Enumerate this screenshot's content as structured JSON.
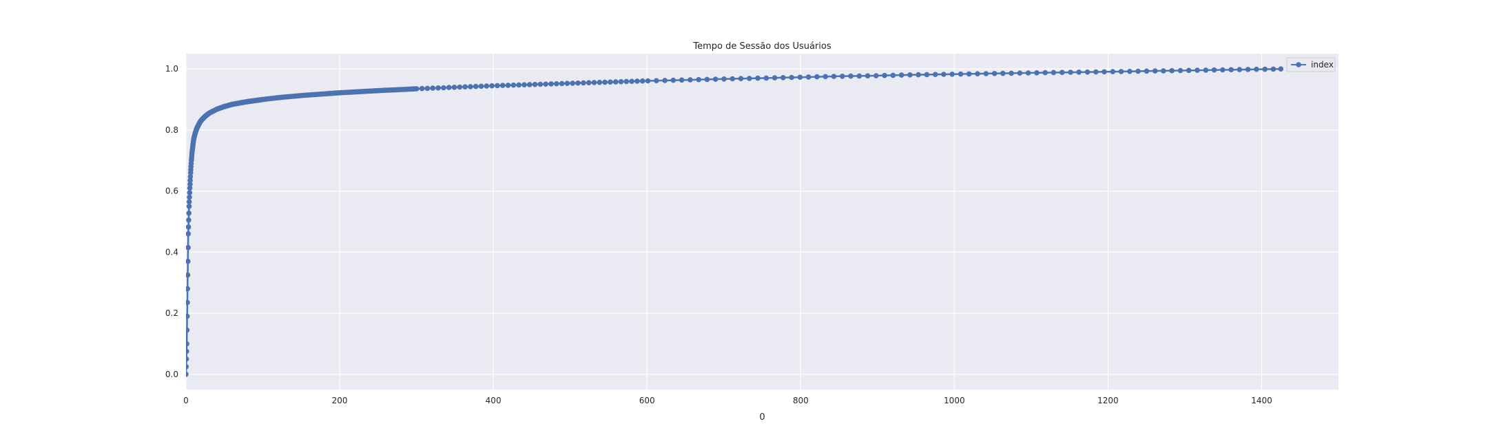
{
  "chart_data": {
    "type": "line",
    "title": "Tempo de Sessão dos Usuários",
    "xlabel": "0",
    "ylabel": "",
    "xlim": [
      0,
      1500
    ],
    "ylim": [
      -0.05,
      1.05
    ],
    "xticks": [
      0,
      200,
      400,
      600,
      800,
      1000,
      1200,
      1400
    ],
    "yticks": [
      0.0,
      0.2,
      0.4,
      0.6,
      0.8,
      1.0
    ],
    "xtick_labels": [
      "0",
      "200",
      "400",
      "600",
      "800",
      "1000",
      "1200",
      "1400"
    ],
    "ytick_labels": [
      "0.0",
      "0.2",
      "0.4",
      "0.6",
      "0.8",
      "1.0"
    ],
    "grid": true,
    "legend_position": "top-right",
    "series": [
      {
        "name": "index",
        "color": "#4c72b0",
        "marker": "circle",
        "x": [
          0,
          1,
          2,
          3,
          4,
          5,
          6,
          7,
          8,
          9,
          10,
          12,
          14,
          16,
          18,
          20,
          25,
          30,
          40,
          50,
          60,
          80,
          100,
          120,
          150,
          200,
          250,
          300,
          350,
          400,
          450,
          500,
          550,
          600,
          650,
          700,
          750,
          800,
          850,
          900,
          950,
          1000,
          1050,
          1100,
          1150,
          1200,
          1250,
          1300,
          1350,
          1400,
          1425
        ],
        "y": [
          0.0,
          0.1,
          0.28,
          0.46,
          0.55,
          0.61,
          0.66,
          0.7,
          0.73,
          0.75,
          0.77,
          0.79,
          0.805,
          0.815,
          0.825,
          0.832,
          0.845,
          0.855,
          0.868,
          0.877,
          0.884,
          0.893,
          0.9,
          0.906,
          0.913,
          0.922,
          0.929,
          0.935,
          0.94,
          0.945,
          0.949,
          0.953,
          0.957,
          0.961,
          0.964,
          0.967,
          0.97,
          0.973,
          0.976,
          0.978,
          0.981,
          0.983,
          0.985,
          0.987,
          0.989,
          0.991,
          0.993,
          0.995,
          0.997,
          0.999,
          1.0
        ]
      }
    ]
  }
}
